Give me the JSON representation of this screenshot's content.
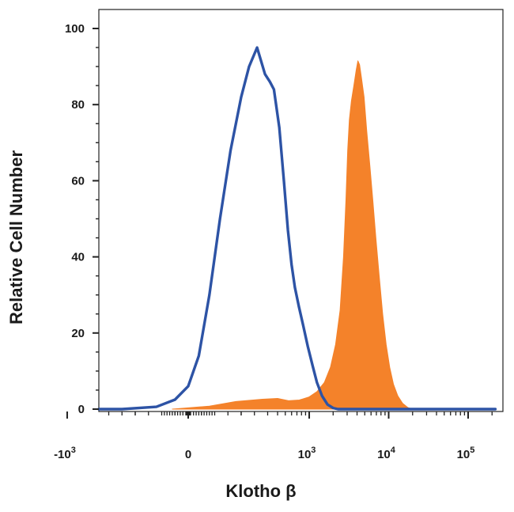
{
  "chart_data": {
    "type": "area",
    "xlabel": "Klotho β",
    "ylabel": "Relative Cell Number",
    "x_scale": "biexponential",
    "xlim": [
      -1800,
      220000
    ],
    "ylim": [
      0,
      100
    ],
    "yticks": [
      {
        "value": 0,
        "label": "0"
      },
      {
        "value": 20,
        "label": "20"
      },
      {
        "value": 40,
        "label": "40"
      },
      {
        "value": 60,
        "label": "60"
      },
      {
        "value": 80,
        "label": "80"
      },
      {
        "value": 100,
        "label": "100"
      }
    ],
    "xticks": [
      {
        "value": -1000,
        "base": "-10",
        "exp": "3"
      },
      {
        "value": 0,
        "base": "0",
        "exp": ""
      },
      {
        "value": 1000,
        "base": "10",
        "exp": "3"
      },
      {
        "value": 10000,
        "base": "10",
        "exp": "4"
      },
      {
        "value": 100000,
        "base": "10",
        "exp": "5"
      }
    ],
    "grid": false,
    "legend": "none",
    "series": [
      {
        "style": "filled",
        "color": "#f4822a",
        "points": [
          [
            -60,
            0
          ],
          [
            80,
            0.8
          ],
          [
            180,
            2.0
          ],
          [
            280,
            2.6
          ],
          [
            400,
            2.8
          ],
          [
            550,
            2.2
          ],
          [
            750,
            2.4
          ],
          [
            1000,
            3.2
          ],
          [
            1250,
            4.6
          ],
          [
            1550,
            7.0
          ],
          [
            1850,
            11
          ],
          [
            2150,
            17
          ],
          [
            2450,
            26
          ],
          [
            2700,
            40
          ],
          [
            2900,
            55
          ],
          [
            3050,
            68
          ],
          [
            3200,
            76
          ],
          [
            3400,
            81
          ],
          [
            3650,
            85
          ],
          [
            3900,
            89
          ],
          [
            4100,
            91.5
          ],
          [
            4300,
            90.5
          ],
          [
            4550,
            87
          ],
          [
            4900,
            82
          ],
          [
            5300,
            73
          ],
          [
            5800,
            64
          ],
          [
            6300,
            55
          ],
          [
            6900,
            45
          ],
          [
            7600,
            35
          ],
          [
            8400,
            25
          ],
          [
            9300,
            17
          ],
          [
            10300,
            11
          ],
          [
            11500,
            6.5
          ],
          [
            13000,
            3.5
          ],
          [
            15000,
            1.5
          ],
          [
            17500,
            0.4
          ],
          [
            20000,
            0
          ]
        ]
      },
      {
        "style": "line",
        "color": "#2d53a5",
        "points": [
          [
            -2000,
            0
          ],
          [
            -1000,
            0
          ],
          [
            -600,
            0
          ],
          [
            -250,
            0
          ],
          [
            -120,
            0.6
          ],
          [
            -50,
            2.5
          ],
          [
            0,
            6
          ],
          [
            40,
            14
          ],
          [
            80,
            30
          ],
          [
            120,
            50
          ],
          [
            160,
            68
          ],
          [
            200,
            82
          ],
          [
            230,
            90
          ],
          [
            260,
            95
          ],
          [
            290,
            88
          ],
          [
            320,
            86
          ],
          [
            360,
            84
          ],
          [
            420,
            74
          ],
          [
            480,
            60
          ],
          [
            540,
            47
          ],
          [
            600,
            38
          ],
          [
            660,
            32
          ],
          [
            740,
            27
          ],
          [
            840,
            22
          ],
          [
            960,
            16.5
          ],
          [
            1100,
            11.5
          ],
          [
            1250,
            7
          ],
          [
            1450,
            3.5
          ],
          [
            1700,
            1.2
          ],
          [
            2000,
            0.3
          ],
          [
            2300,
            0
          ],
          [
            10000,
            0
          ],
          [
            100000,
            0
          ],
          [
            220000,
            0
          ]
        ]
      }
    ]
  }
}
